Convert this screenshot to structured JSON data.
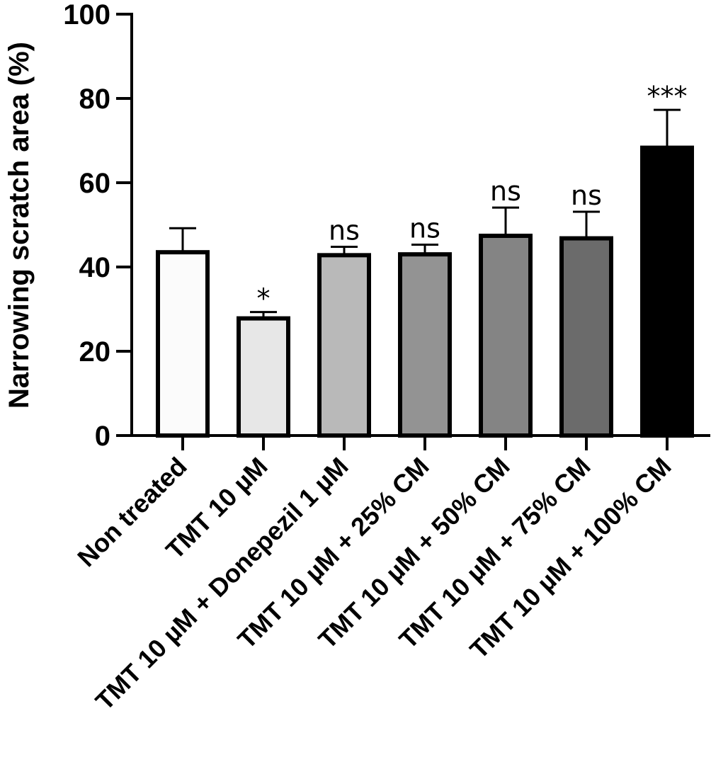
{
  "chart_data": {
    "type": "bar",
    "title": "",
    "xlabel": "",
    "ylabel": "Narrowing scratch area (%)",
    "ylim": [
      0,
      100
    ],
    "yticks": [
      0,
      20,
      40,
      60,
      80,
      100
    ],
    "grid": false,
    "categories": [
      "Non treated",
      "TMT 10 µM",
      "TMT 10 µM + Donepezil 1 µM",
      "TMT 10 µM + 25% CM",
      "TMT 10 µM + 50% CM",
      "TMT 10 µM + 75% CM",
      "TMT 10 µM + 100% CM"
    ],
    "values": [
      43.5,
      27.8,
      42.8,
      43.0,
      47.4,
      46.8,
      68.3
    ],
    "errors": [
      5.7,
      1.5,
      2.0,
      2.3,
      6.7,
      6.3,
      9.0
    ],
    "significance": [
      "",
      "*",
      "ns",
      "ns",
      "ns",
      "ns",
      "***"
    ],
    "bar_colors": [
      "#fbfbfb",
      "#e7e7e7",
      "#b9b9b9",
      "#939393",
      "#848484",
      "#6b6b6b",
      "#000000"
    ]
  }
}
